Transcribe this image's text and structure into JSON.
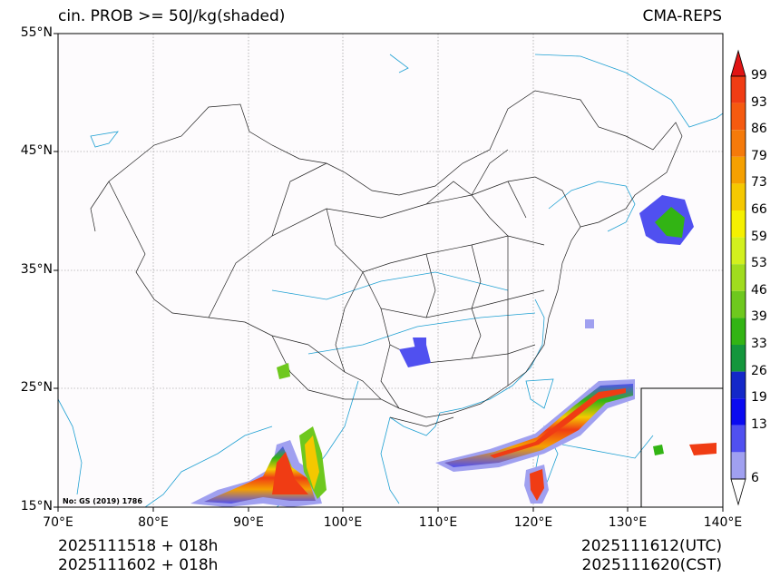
{
  "header": {
    "title_left": "cin. PROB >= 50J/kg(shaded)",
    "title_right": "CMA-REPS"
  },
  "map": {
    "lat_labels": [
      "55°N",
      "45°N",
      "35°N",
      "25°N",
      "15°N"
    ],
    "lon_labels": [
      "70°E",
      "80°E",
      "90°E",
      "100°E",
      "110°E",
      "120°E",
      "130°E",
      "140°E"
    ],
    "approval_no": "No: GS (2019) 1786"
  },
  "colorbar": {
    "labels": [
      "99",
      "93",
      "86",
      "79",
      "73",
      "66",
      "59",
      "53",
      "46",
      "39",
      "33",
      "26",
      "19",
      "13",
      "6"
    ],
    "colors": [
      "#f03c14",
      "#f55a10",
      "#f57a0a",
      "#f5a000",
      "#f5c800",
      "#f5f000",
      "#d2f01e",
      "#a0dc1e",
      "#6ec81e",
      "#32b414",
      "#14963c",
      "#1428c8",
      "#0a0af0",
      "#5050f0",
      "#a0a0f0"
    ],
    "top_color": "#e01414"
  },
  "footer": {
    "left_line1": "2025111518  +  018h",
    "left_line2": "2025111602  +  018h",
    "right_line1": "2025111612(UTC)",
    "right_line2": "2025111620(CST)"
  }
}
